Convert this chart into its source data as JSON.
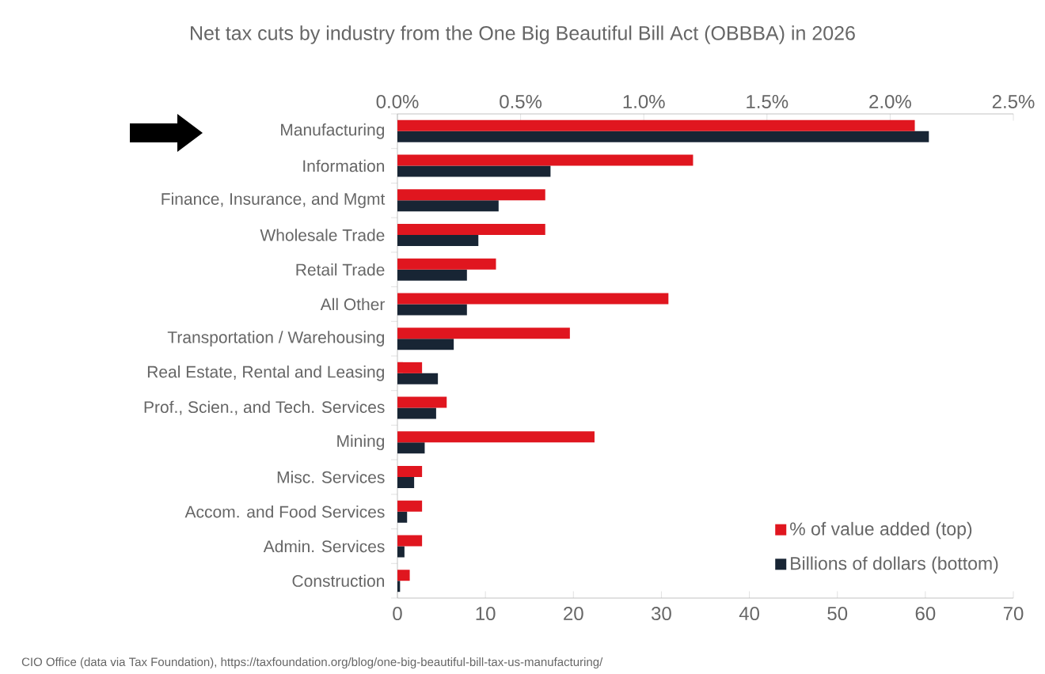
{
  "chart_data": {
    "type": "bar",
    "orientation": "horizontal",
    "title": "Net tax cuts by industry from the One Big Beautiful Bill Act (OBBBA) in 2026",
    "categories": [
      "Manufacturing",
      "Information",
      "Finance, Insurance, and Mgmt",
      "Wholesale Trade",
      "Retail Trade",
      "All Other",
      "Transportation / Warehousing",
      "Real Estate, Rental and Leasing",
      "Prof., Scien., and Tech. Services",
      "Mining",
      "Misc. Services",
      "Accom. and Food Services",
      "Admin. Services",
      "Construction"
    ],
    "series": [
      {
        "name": "% of value added (top)",
        "color": "#e0161f",
        "axis": "x2",
        "values": [
          2.1,
          1.2,
          0.6,
          0.6,
          0.4,
          1.1,
          0.7,
          0.1,
          0.2,
          0.8,
          0.1,
          0.1,
          0.1,
          0.05
        ]
      },
      {
        "name": "Billions of dollars (bottom)",
        "color": "#182534",
        "values": [
          60.4,
          17.4,
          11.5,
          9.2,
          7.9,
          7.9,
          6.4,
          4.6,
          4.4,
          3.1,
          1.9,
          1.1,
          0.8,
          0.3
        ]
      }
    ],
    "xlim": [
      0,
      70
    ],
    "xticks": [
      0,
      10,
      20,
      30,
      40,
      50,
      60,
      70
    ],
    "x2lim": [
      0,
      2.5
    ],
    "x2ticks": [
      {
        "value": 0,
        "label": "0.0%"
      },
      {
        "value": 0.5,
        "label": "0.5%"
      },
      {
        "value": 1,
        "label": "1.0%"
      },
      {
        "value": 1.5,
        "label": "1.5%"
      },
      {
        "value": 2,
        "label": "2.0%"
      },
      {
        "value": 2.5,
        "label": "2.5%"
      }
    ],
    "legend": "bottom right",
    "annotations": [
      "CIO Office (data via Tax Foundation), https://taxfoundation.org/blog/one-big-beautiful-bill-tax-us-manufacturing/"
    ]
  }
}
